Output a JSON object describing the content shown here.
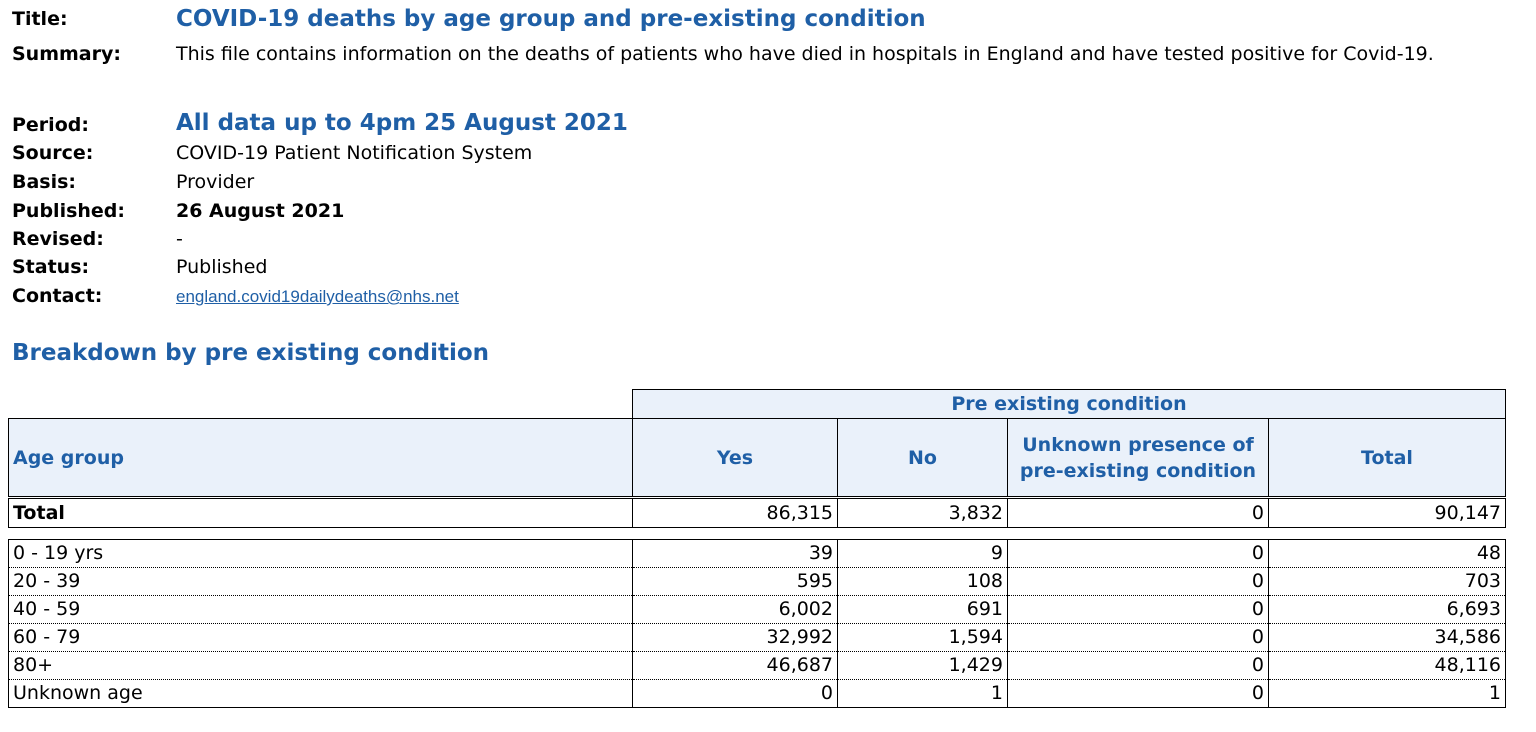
{
  "meta": {
    "title_label": "Title:",
    "title": "COVID-19 deaths by age group and pre-existing condition",
    "summary_label": "Summary:",
    "summary": "This file contains information on the deaths of patients who have died in hospitals in England and have tested positive for Covid-19.",
    "period_label": "Period:",
    "period": "All data up to 4pm 25 August 2021",
    "source_label": "Source:",
    "source": "COVID-19 Patient Notification System",
    "basis_label": "Basis:",
    "basis": "Provider",
    "published_label": "Published:",
    "published": "26 August 2021",
    "revised_label": "Revised:",
    "revised": "-",
    "status_label": "Status:",
    "status": "Published",
    "contact_label": "Contact:",
    "contact": "england.covid19dailydeaths@nhs.net"
  },
  "section_heading": "Breakdown by pre existing condition",
  "table": {
    "group_header": "Pre existing condition",
    "headers": {
      "age_group": "Age group",
      "yes": "Yes",
      "no": "No",
      "unknown": "Unknown presence of pre-existing condition",
      "total": "Total"
    },
    "total_row": {
      "label": "Total",
      "yes": "86,315",
      "no": "3,832",
      "unknown": "0",
      "total": "90,147"
    },
    "rows": [
      {
        "label": "0 - 19 yrs",
        "yes": "39",
        "no": "9",
        "unknown": "0",
        "total": "48"
      },
      {
        "label": "20 - 39",
        "yes": "595",
        "no": "108",
        "unknown": "0",
        "total": "703"
      },
      {
        "label": "40 - 59",
        "yes": "6,002",
        "no": "691",
        "unknown": "0",
        "total": "6,693"
      },
      {
        "label": "60 - 79",
        "yes": "32,992",
        "no": "1,594",
        "unknown": "0",
        "total": "34,586"
      },
      {
        "label": "80+",
        "yes": "46,687",
        "no": "1,429",
        "unknown": "0",
        "total": "48,116"
      },
      {
        "label": "Unknown age",
        "yes": "0",
        "no": "1",
        "unknown": "0",
        "total": "1"
      }
    ]
  }
}
